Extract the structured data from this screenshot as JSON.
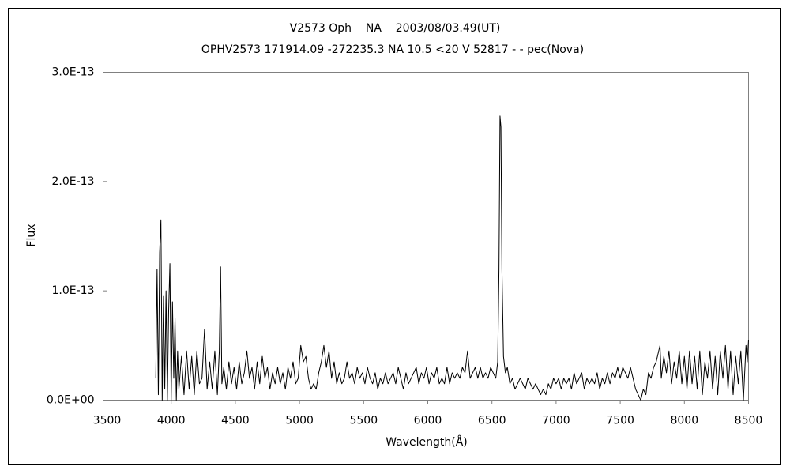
{
  "chart_data": {
    "type": "line",
    "title": "V2573 Oph    NA    2003/08/03.49(UT)",
    "subtitle": "OPHV2573 171914.09 -272235.3 NA 10.5 <20 V 52817 - - pec(Nova)",
    "x_label": "Wavelength(Å)",
    "y_label": "Flux",
    "color": "#000000",
    "xlim": [
      3500,
      8500
    ],
    "xticks": [
      3500,
      4000,
      4500,
      5000,
      5500,
      6000,
      6500,
      7000,
      7500,
      8000,
      8500
    ],
    "ylim": [
      0,
      3e-13
    ],
    "yticks": [
      {
        "value": 0,
        "label": "0.0E+00"
      },
      {
        "value": 1e-13,
        "label": "1.0E-13"
      },
      {
        "value": 2e-13,
        "label": "2.0E-13"
      },
      {
        "value": 3e-13,
        "label": "3.0E-13"
      }
    ],
    "x": [
      3880,
      3890,
      3900,
      3910,
      3920,
      3930,
      3940,
      3950,
      3960,
      3970,
      3980,
      3990,
      4000,
      4010,
      4020,
      4030,
      4040,
      4050,
      4060,
      4080,
      4100,
      4120,
      4140,
      4160,
      4180,
      4200,
      4220,
      4240,
      4260,
      4280,
      4300,
      4320,
      4340,
      4360,
      4375,
      4385,
      4395,
      4410,
      4430,
      4450,
      4470,
      4490,
      4510,
      4530,
      4550,
      4570,
      4590,
      4610,
      4630,
      4650,
      4670,
      4690,
      4710,
      4730,
      4750,
      4770,
      4790,
      4810,
      4830,
      4850,
      4870,
      4890,
      4910,
      4930,
      4950,
      4970,
      4990,
      5010,
      5030,
      5050,
      5070,
      5090,
      5110,
      5130,
      5150,
      5170,
      5190,
      5210,
      5230,
      5250,
      5270,
      5290,
      5310,
      5330,
      5350,
      5370,
      5390,
      5410,
      5430,
      5450,
      5470,
      5490,
      5510,
      5530,
      5550,
      5570,
      5590,
      5610,
      5630,
      5650,
      5670,
      5690,
      5710,
      5730,
      5750,
      5770,
      5790,
      5810,
      5830,
      5850,
      5870,
      5890,
      5910,
      5930,
      5950,
      5970,
      5990,
      6010,
      6030,
      6050,
      6070,
      6090,
      6110,
      6130,
      6150,
      6170,
      6190,
      6210,
      6230,
      6250,
      6270,
      6290,
      6310,
      6330,
      6350,
      6370,
      6390,
      6410,
      6430,
      6450,
      6470,
      6490,
      6510,
      6530,
      6545,
      6555,
      6563,
      6570,
      6578,
      6590,
      6605,
      6620,
      6640,
      6660,
      6680,
      6700,
      6720,
      6740,
      6760,
      6780,
      6800,
      6820,
      6840,
      6860,
      6880,
      6900,
      6920,
      6940,
      6960,
      6980,
      7000,
      7020,
      7040,
      7060,
      7080,
      7100,
      7120,
      7140,
      7160,
      7180,
      7200,
      7220,
      7240,
      7260,
      7280,
      7300,
      7320,
      7340,
      7360,
      7380,
      7400,
      7420,
      7440,
      7460,
      7480,
      7500,
      7520,
      7540,
      7560,
      7580,
      7600,
      7620,
      7640,
      7660,
      7680,
      7700,
      7720,
      7740,
      7760,
      7780,
      7800,
      7810,
      7820,
      7840,
      7860,
      7880,
      7900,
      7920,
      7940,
      7960,
      7980,
      8000,
      8020,
      8040,
      8060,
      8080,
      8100,
      8120,
      8140,
      8160,
      8180,
      8200,
      8220,
      8240,
      8260,
      8280,
      8300,
      8320,
      8340,
      8360,
      8380,
      8400,
      8420,
      8440,
      8460,
      8480,
      8490,
      8500
    ],
    "values": [
      2e-14,
      1.2e-13,
      5e-15,
      1.35e-13,
      1.65e-13,
      0,
      9.5e-14,
      1e-14,
      1e-13,
      0,
      8e-14,
      1.25e-13,
      0,
      9e-14,
      2e-14,
      7.5e-14,
      0,
      4.5e-14,
      1e-14,
      4e-14,
      5e-15,
      4.5e-14,
      1e-14,
      4e-14,
      5e-15,
      4.5e-14,
      1.5e-14,
      2e-14,
      6.5e-14,
      1e-14,
      3.5e-14,
      1e-14,
      4.5e-14,
      5e-15,
      4.5e-14,
      1.22e-13,
      1.5e-14,
      3e-14,
      1e-14,
      3.5e-14,
      1.5e-14,
      3e-14,
      1e-14,
      3.5e-14,
      1.5e-14,
      2.5e-14,
      4.5e-14,
      2e-14,
      3e-14,
      1e-14,
      3.5e-14,
      1.5e-14,
      4e-14,
      2e-14,
      3e-14,
      1e-14,
      2.5e-14,
      1.5e-14,
      3e-14,
      1.5e-14,
      2.5e-14,
      1e-14,
      3e-14,
      2e-14,
      3.5e-14,
      1.5e-14,
      2e-14,
      5e-14,
      3.5e-14,
      4e-14,
      2e-14,
      1e-14,
      1.5e-14,
      1e-14,
      2.5e-14,
      3.5e-14,
      5e-14,
      3e-14,
      4.5e-14,
      2e-14,
      3.5e-14,
      1.5e-14,
      2.5e-14,
      1.5e-14,
      2e-14,
      3.5e-14,
      2e-14,
      2.5e-14,
      1.5e-14,
      3e-14,
      2e-14,
      2.5e-14,
      1.5e-14,
      3e-14,
      2e-14,
      1.5e-14,
      2.5e-14,
      1e-14,
      2e-14,
      1.5e-14,
      2.5e-14,
      1.5e-14,
      2e-14,
      2.5e-14,
      1.5e-14,
      3e-14,
      2e-14,
      1e-14,
      2.5e-14,
      1.5e-14,
      2e-14,
      2.5e-14,
      3e-14,
      1.5e-14,
      2.5e-14,
      2e-14,
      3e-14,
      1.5e-14,
      2.5e-14,
      2e-14,
      3e-14,
      1.5e-14,
      2e-14,
      1.5e-14,
      3e-14,
      1.5e-14,
      2.5e-14,
      2e-14,
      2.5e-14,
      2e-14,
      3e-14,
      2.5e-14,
      4.5e-14,
      2e-14,
      2.5e-14,
      3e-14,
      2e-14,
      3e-14,
      2e-14,
      2.5e-14,
      2e-14,
      3e-14,
      2.5e-14,
      2e-14,
      3.5e-14,
      1.2e-13,
      2.6e-13,
      2.5e-13,
      1.2e-13,
      4e-14,
      2.5e-14,
      3e-14,
      1.5e-14,
      2e-14,
      1e-14,
      1.5e-14,
      2e-14,
      1.5e-14,
      1e-14,
      2e-14,
      1.5e-14,
      1e-14,
      1.5e-14,
      1e-14,
      5e-15,
      1e-14,
      5e-15,
      1.5e-14,
      1e-14,
      2e-14,
      1.5e-14,
      2e-14,
      1e-14,
      2e-14,
      1.5e-14,
      2e-14,
      1e-14,
      2.5e-14,
      1.5e-14,
      2e-14,
      2.5e-14,
      1e-14,
      2e-14,
      1.5e-14,
      2e-14,
      1.5e-14,
      2.5e-14,
      1e-14,
      2e-14,
      1.5e-14,
      2.5e-14,
      1.5e-14,
      2.5e-14,
      2e-14,
      3e-14,
      2e-14,
      3e-14,
      2.5e-14,
      2e-14,
      3e-14,
      2e-14,
      1e-14,
      5e-15,
      0,
      1e-14,
      5e-15,
      2.5e-14,
      2e-14,
      3e-14,
      3.5e-14,
      4.5e-14,
      5e-14,
      2e-14,
      4e-14,
      2.5e-14,
      4.5e-14,
      1.5e-14,
      3.5e-14,
      2e-14,
      4.5e-14,
      1.5e-14,
      4e-14,
      1e-14,
      4.5e-14,
      1.5e-14,
      4e-14,
      1e-14,
      4.5e-14,
      5e-15,
      3.5e-14,
      2e-14,
      4.5e-14,
      1e-14,
      4e-14,
      5e-15,
      4.5e-14,
      2e-14,
      5e-14,
      1e-14,
      4.5e-14,
      5e-15,
      4e-14,
      1.5e-14,
      4.5e-14,
      0,
      5e-14,
      3.5e-14,
      5.5e-14
    ]
  }
}
